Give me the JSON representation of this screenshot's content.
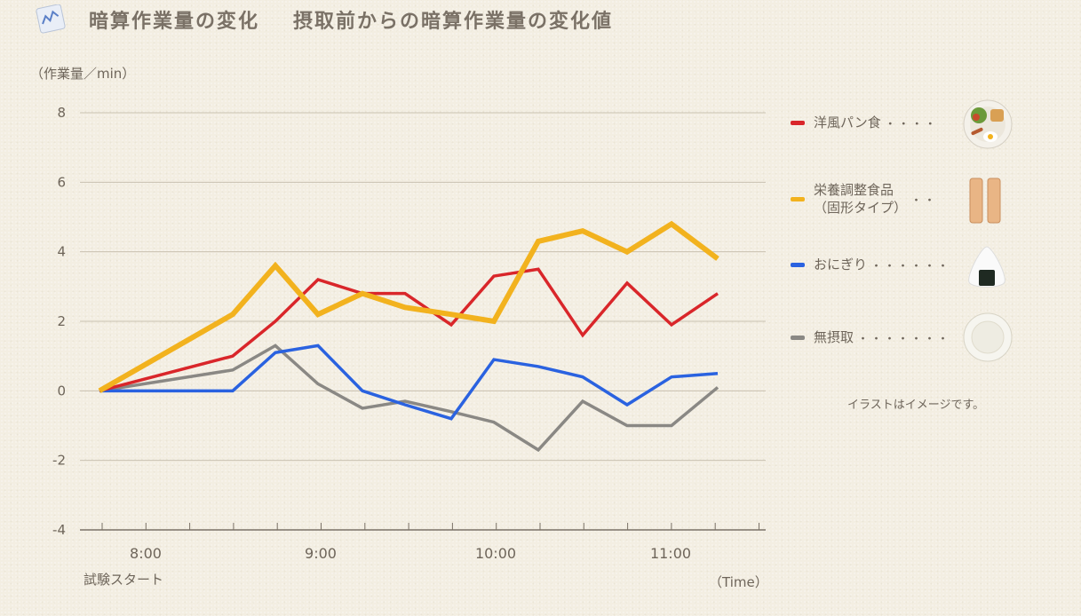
{
  "title": {
    "main": "暗算作業量の変化",
    "sub": "摂取前からの暗算作業量の変化値"
  },
  "axis": {
    "ylabel": "（作業量／min）",
    "xlabel": "（Time）",
    "start_label": "試験スタート"
  },
  "legend": {
    "items": [
      {
        "label": "洋風パン食",
        "color": "#d9262a",
        "dots": "・・・・",
        "icon": "western-breakfast-plate-icon"
      },
      {
        "label": "栄養調整食品\n（固形タイプ）",
        "color": "#f2b21e",
        "dots": "・・",
        "icon": "nutrition-bar-icon"
      },
      {
        "label": "おにぎり",
        "color": "#2a62e0",
        "dots": "・・・・・・",
        "icon": "onigiri-icon"
      },
      {
        "label": "無摂取",
        "color": "#8a8884",
        "dots": "・・・・・・・",
        "icon": "empty-plate-icon"
      }
    ],
    "note": "イラストはイメージです。"
  },
  "chart_data": {
    "type": "line",
    "title": "暗算作業量の変化",
    "subtitle": "摂取前からの暗算作業量の変化値",
    "ylabel": "（作業量／min）",
    "xlabel": "（Time）",
    "ylim": [
      -4,
      8
    ],
    "yticks": [
      -4,
      -2,
      0,
      2,
      4,
      6,
      8
    ],
    "x_ticks_labels": [
      "8:00",
      "9:00",
      "10:00",
      "11:00"
    ],
    "x": [
      "7:50",
      "8:20",
      "8:35",
      "8:50",
      "9:00",
      "9:10",
      "9:20",
      "9:30",
      "9:45",
      "10:00",
      "10:10",
      "10:20",
      "10:35",
      "10:50",
      "11:00"
    ],
    "grid": true,
    "legend_position": "right",
    "series": [
      {
        "name": "洋風パン食",
        "color": "#d9262a",
        "values": [
          0,
          1.0,
          2.0,
          3.2,
          2.8,
          2.8,
          1.9,
          3.3,
          3.5,
          1.6,
          3.1,
          1.9,
          2.8,
          null,
          null
        ]
      },
      {
        "name": "栄養調整食品（固形タイプ）",
        "color": "#f2b21e",
        "values": [
          0,
          2.2,
          3.6,
          2.2,
          2.8,
          2.4,
          2.2,
          2.0,
          4.3,
          4.6,
          4.0,
          4.8,
          3.8,
          null,
          null
        ]
      },
      {
        "name": "おにぎり",
        "color": "#2a62e0",
        "values": [
          0,
          0,
          1.1,
          1.3,
          0,
          -0.4,
          -0.8,
          0.9,
          0.7,
          0.4,
          -0.4,
          0.4,
          0.5,
          null,
          null
        ]
      },
      {
        "name": "無摂取",
        "color": "#8a8884",
        "values": [
          0,
          0.6,
          1.3,
          0.2,
          -0.5,
          -0.3,
          -0.6,
          -0.9,
          -1.7,
          -0.3,
          -1.0,
          -1.0,
          0.1,
          null,
          null
        ]
      }
    ]
  }
}
